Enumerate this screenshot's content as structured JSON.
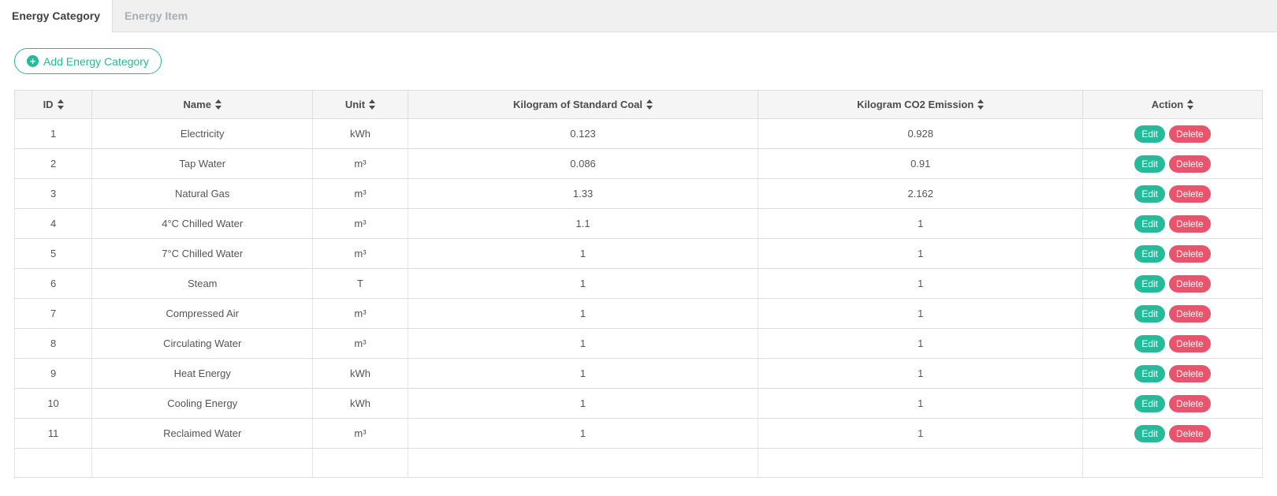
{
  "tabs": {
    "items": [
      {
        "label": "Energy Category",
        "active": true
      },
      {
        "label": "Energy Item",
        "active": false
      }
    ]
  },
  "toolbar": {
    "add_button": {
      "label": "Add Energy Category",
      "icon": "plus-circle-icon"
    }
  },
  "table": {
    "columns": [
      {
        "key": "id",
        "label": "ID",
        "sortable": true,
        "width": "6.2%"
      },
      {
        "key": "name",
        "label": "Name",
        "sortable": true,
        "width": "17.7%"
      },
      {
        "key": "unit",
        "label": "Unit",
        "sortable": true,
        "width": "7.6%"
      },
      {
        "key": "kgce",
        "label": "Kilogram of Standard Coal",
        "sortable": true,
        "width": "28.1%"
      },
      {
        "key": "kgco2e",
        "label": "Kilogram CO2 Emission",
        "sortable": true,
        "width": "26.0%"
      },
      {
        "key": "action",
        "label": "Action",
        "sortable": true,
        "width": "14.4%"
      }
    ],
    "rows": [
      {
        "id": "1",
        "name": "Electricity",
        "unit": "kWh",
        "kgce": "0.123",
        "kgco2e": "0.928"
      },
      {
        "id": "2",
        "name": "Tap Water",
        "unit": "m³",
        "kgce": "0.086",
        "kgco2e": "0.91"
      },
      {
        "id": "3",
        "name": "Natural Gas",
        "unit": "m³",
        "kgce": "1.33",
        "kgco2e": "2.162"
      },
      {
        "id": "4",
        "name": "4°C Chilled Water",
        "unit": "m³",
        "kgce": "1.1",
        "kgco2e": "1"
      },
      {
        "id": "5",
        "name": "7°C Chilled Water",
        "unit": "m³",
        "kgce": "1",
        "kgco2e": "1"
      },
      {
        "id": "6",
        "name": "Steam",
        "unit": "T",
        "kgce": "1",
        "kgco2e": "1"
      },
      {
        "id": "7",
        "name": "Compressed Air",
        "unit": "m³",
        "kgce": "1",
        "kgco2e": "1"
      },
      {
        "id": "8",
        "name": "Circulating Water",
        "unit": "m³",
        "kgce": "1",
        "kgco2e": "1"
      },
      {
        "id": "9",
        "name": "Heat Energy",
        "unit": "kWh",
        "kgce": "1",
        "kgco2e": "1"
      },
      {
        "id": "10",
        "name": "Cooling Energy",
        "unit": "kWh",
        "kgce": "1",
        "kgco2e": "1"
      },
      {
        "id": "11",
        "name": "Reclaimed Water",
        "unit": "m³",
        "kgce": "1",
        "kgco2e": "1"
      }
    ],
    "row_actions": {
      "edit_label": "Edit",
      "delete_label": "Delete"
    }
  },
  "colors": {
    "accent": "#26b99a",
    "danger": "#e8546b",
    "tab_bar_bg": "#f0f0f0",
    "table_header_bg": "#f5f5f5",
    "border": "#dddddd"
  }
}
